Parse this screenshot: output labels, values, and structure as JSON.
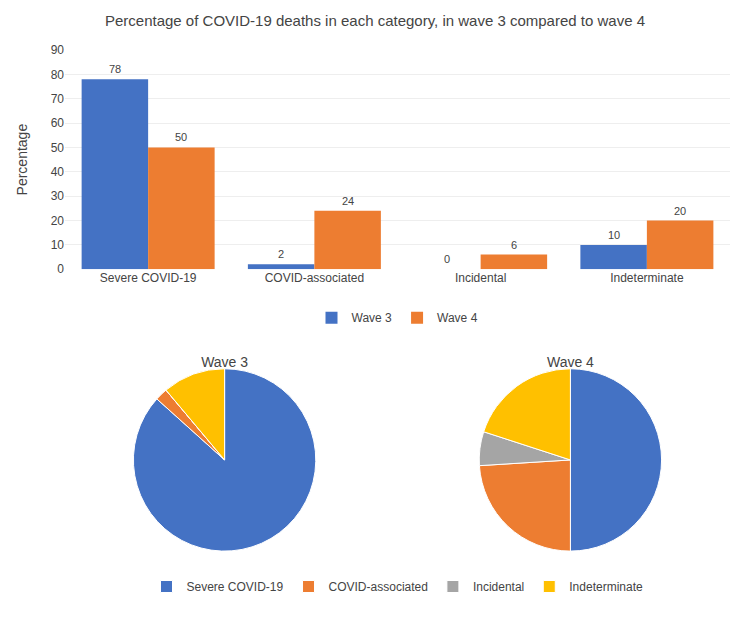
{
  "chart_data": [
    {
      "type": "bar",
      "title": "Percentage of COVID-19 deaths in each category, in wave 3 compared to wave 4",
      "categories": [
        "Severe COVID-19",
        "COVID-associated",
        "Incidental",
        "Indeterminate"
      ],
      "series": [
        {
          "name": "Wave 3",
          "color": "#4472C4",
          "values": [
            78,
            2,
            0,
            10
          ]
        },
        {
          "name": "Wave 4",
          "color": "#ED7D31",
          "values": [
            50,
            24,
            6,
            20
          ]
        }
      ],
      "ylabel": "Percentage",
      "ylim": [
        0,
        90
      ],
      "yticks": [
        0,
        10,
        20,
        30,
        40,
        50,
        60,
        70,
        80,
        90
      ],
      "grid": true,
      "data_labels": true,
      "legend": "bottom"
    },
    {
      "type": "pie",
      "title": "Wave 3",
      "categories": [
        "Severe COVID-19",
        "COVID-associated",
        "Incidental",
        "Indeterminate"
      ],
      "values": [
        78,
        2,
        0,
        10
      ],
      "colors": [
        "#4472C4",
        "#ED7D31",
        "#A5A5A5",
        "#FFC000"
      ],
      "legend": "bottom"
    },
    {
      "type": "pie",
      "title": "Wave 4",
      "categories": [
        "Severe COVID-19",
        "COVID-associated",
        "Incidental",
        "Indeterminate"
      ],
      "values": [
        50,
        24,
        6,
        20
      ],
      "colors": [
        "#4472C4",
        "#ED7D31",
        "#A5A5A5",
        "#FFC000"
      ],
      "legend": "bottom"
    }
  ]
}
